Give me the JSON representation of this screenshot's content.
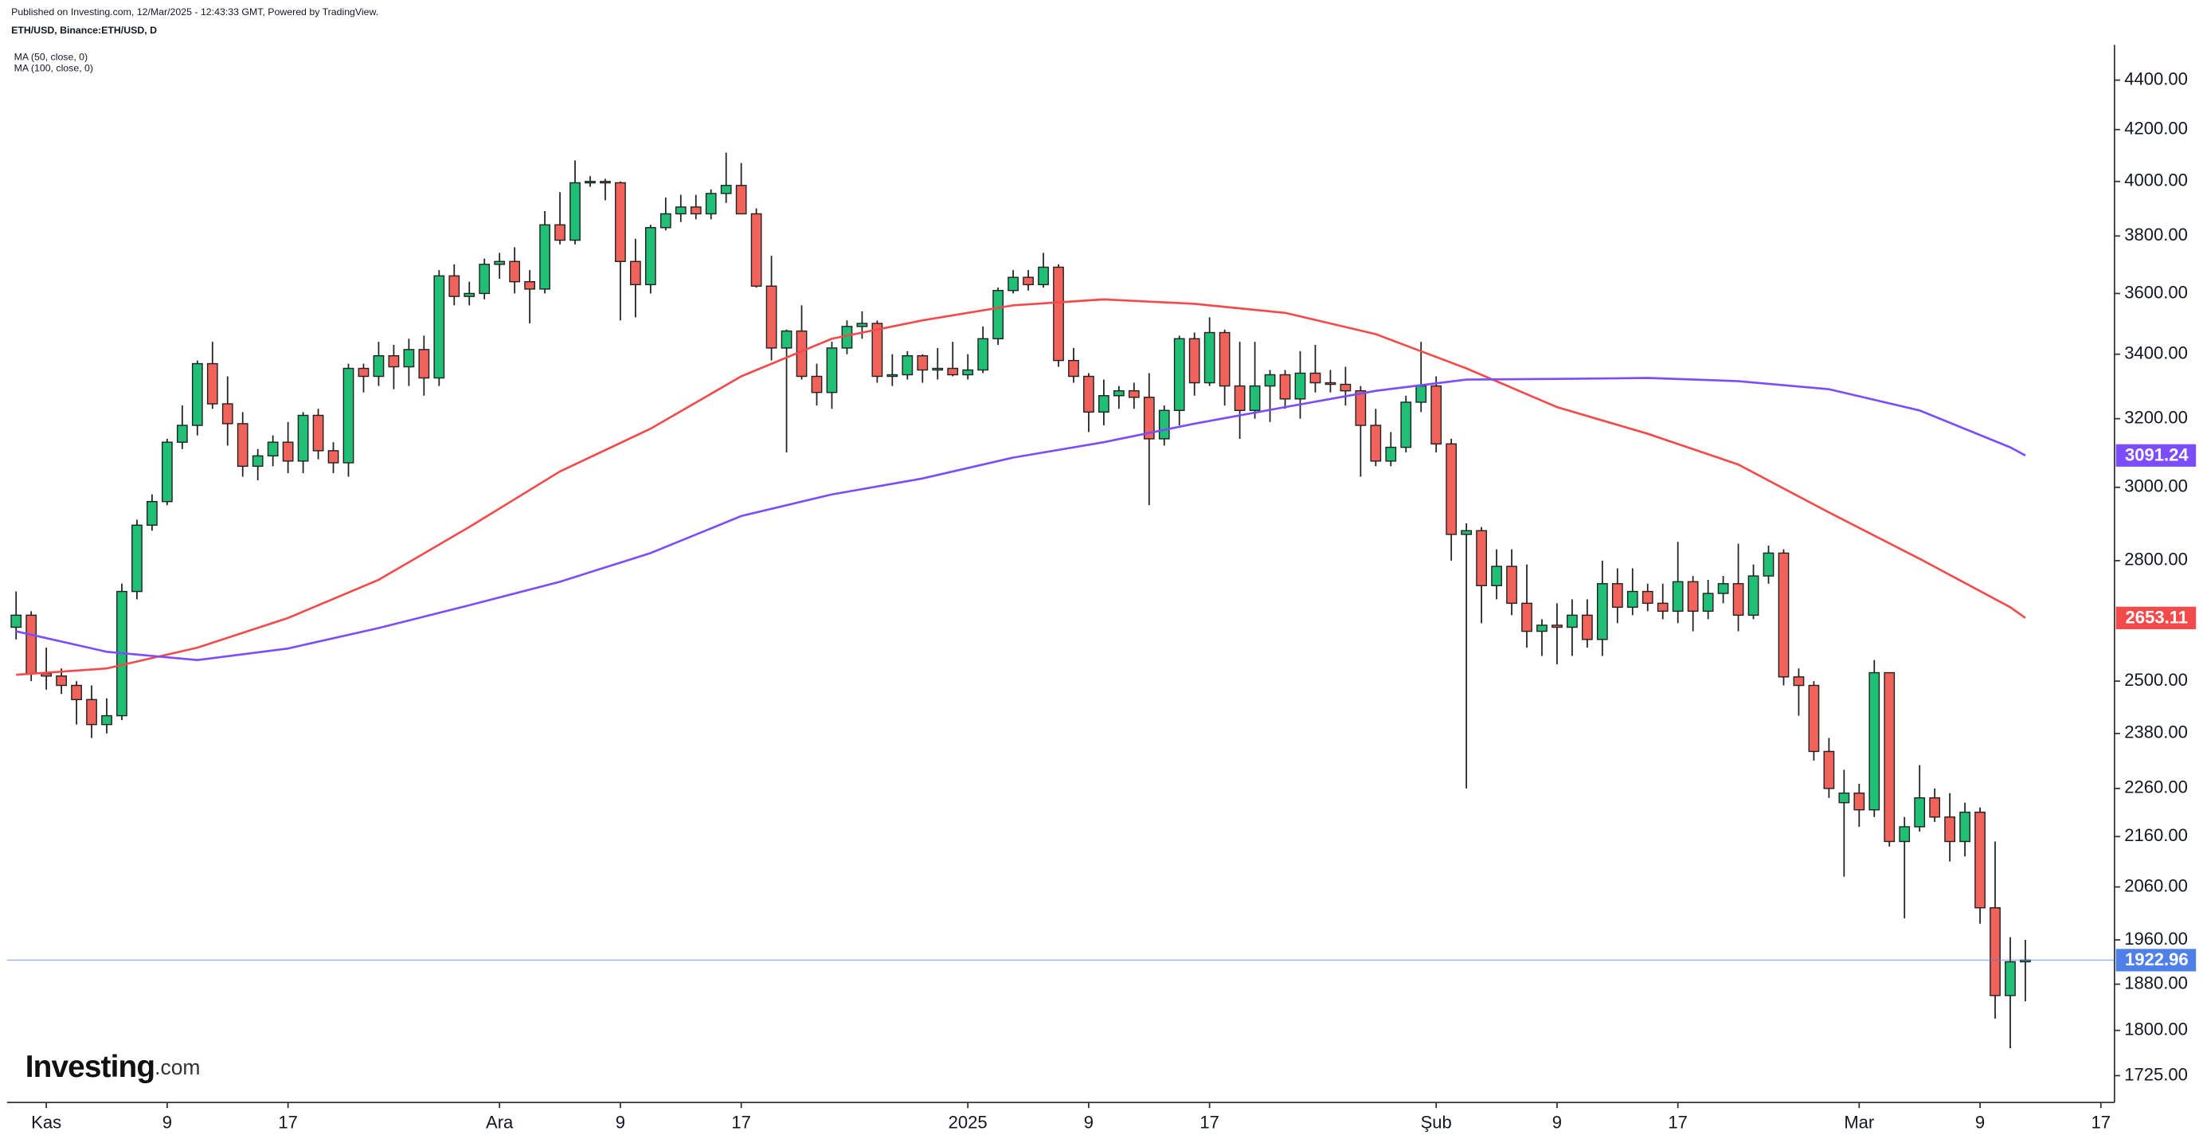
{
  "chart_data": {
    "type": "candlestick",
    "title": "Published on Investing.com, 12/Mar/2025 - 12:43:33 GMT, Powered by TradingView.",
    "subtitle": "ETH/USD, Binance:ETH/USD, D",
    "logo": "Investing",
    "logo_suffix": ".com",
    "log_scale": true,
    "up_color": "#1fbf75",
    "down_color": "#f0625a",
    "ylim": [
      1682,
      4548
    ],
    "yticks": [
      {
        "value": 4400,
        "label": "4400.00"
      },
      {
        "value": 4200,
        "label": "4200.00"
      },
      {
        "value": 4000,
        "label": "4000.00"
      },
      {
        "value": 3800,
        "label": "3800.00"
      },
      {
        "value": 3600,
        "label": "3600.00"
      },
      {
        "value": 3400,
        "label": "3400.00"
      },
      {
        "value": 3200,
        "label": "3200.00"
      },
      {
        "value": 3000,
        "label": "3000.00"
      },
      {
        "value": 2800,
        "label": "2800.00"
      },
      {
        "value": 2500,
        "label": "2500.00"
      },
      {
        "value": 2380,
        "label": "2380.00"
      },
      {
        "value": 2260,
        "label": "2260.00"
      },
      {
        "value": 2160,
        "label": "2160.00"
      },
      {
        "value": 2060,
        "label": "2060.00"
      },
      {
        "value": 1960,
        "label": "1960.00"
      },
      {
        "value": 1880,
        "label": "1880.00"
      },
      {
        "value": 1800,
        "label": "1800.00"
      },
      {
        "value": 1725,
        "label": "1725.00"
      }
    ],
    "xlim": [
      -0.6,
      138.9
    ],
    "xticks": [
      {
        "value": 2,
        "label": "Kas"
      },
      {
        "value": 10,
        "label": "9"
      },
      {
        "value": 18,
        "label": "17"
      },
      {
        "value": 32,
        "label": "Ara"
      },
      {
        "value": 40,
        "label": "9"
      },
      {
        "value": 48,
        "label": "17"
      },
      {
        "value": 63,
        "label": "2025"
      },
      {
        "value": 71,
        "label": "9"
      },
      {
        "value": 79,
        "label": "17"
      },
      {
        "value": 94,
        "label": "Şub"
      },
      {
        "value": 102,
        "label": "9"
      },
      {
        "value": 110,
        "label": "17"
      },
      {
        "value": 122,
        "label": "Mar"
      },
      {
        "value": 130,
        "label": "9"
      },
      {
        "value": 138,
        "label": "17"
      }
    ],
    "last_price_color": "#4f7fe8",
    "candles": [
      [
        2630,
        2720,
        2600,
        2660
      ],
      [
        2660,
        2670,
        2500,
        2518
      ],
      [
        2518,
        2580,
        2480,
        2512
      ],
      [
        2512,
        2530,
        2470,
        2490
      ],
      [
        2490,
        2500,
        2400,
        2457
      ],
      [
        2457,
        2490,
        2370,
        2400
      ],
      [
        2400,
        2460,
        2380,
        2420
      ],
      [
        2420,
        2740,
        2410,
        2720
      ],
      [
        2720,
        2910,
        2700,
        2895
      ],
      [
        2895,
        2980,
        2880,
        2960
      ],
      [
        2960,
        3140,
        2950,
        3130
      ],
      [
        3130,
        3240,
        3110,
        3180
      ],
      [
        3180,
        3380,
        3150,
        3370
      ],
      [
        3370,
        3440,
        3230,
        3245
      ],
      [
        3245,
        3330,
        3120,
        3185
      ],
      [
        3185,
        3220,
        3030,
        3060
      ],
      [
        3060,
        3110,
        3020,
        3090
      ],
      [
        3090,
        3150,
        3060,
        3130
      ],
      [
        3130,
        3190,
        3040,
        3075
      ],
      [
        3075,
        3220,
        3040,
        3210
      ],
      [
        3210,
        3230,
        3080,
        3105
      ],
      [
        3105,
        3130,
        3040,
        3070
      ],
      [
        3070,
        3370,
        3030,
        3355
      ],
      [
        3355,
        3370,
        3280,
        3330
      ],
      [
        3330,
        3440,
        3300,
        3395
      ],
      [
        3395,
        3430,
        3290,
        3360
      ],
      [
        3360,
        3450,
        3300,
        3415
      ],
      [
        3415,
        3460,
        3270,
        3325
      ],
      [
        3325,
        3680,
        3300,
        3660
      ],
      [
        3660,
        3700,
        3560,
        3590
      ],
      [
        3590,
        3640,
        3560,
        3600
      ],
      [
        3600,
        3720,
        3580,
        3700
      ],
      [
        3700,
        3740,
        3650,
        3710
      ],
      [
        3710,
        3760,
        3600,
        3640
      ],
      [
        3640,
        3680,
        3500,
        3615
      ],
      [
        3615,
        3890,
        3600,
        3840
      ],
      [
        3840,
        3960,
        3770,
        3785
      ],
      [
        3785,
        4080,
        3770,
        3995
      ],
      [
        3995,
        4020,
        3980,
        4000
      ],
      [
        4000,
        4010,
        3930,
        3995
      ],
      [
        3995,
        4000,
        3510,
        3710
      ],
      [
        3710,
        3790,
        3520,
        3630
      ],
      [
        3630,
        3840,
        3600,
        3830
      ],
      [
        3830,
        3940,
        3820,
        3880
      ],
      [
        3880,
        3950,
        3850,
        3905
      ],
      [
        3905,
        3950,
        3860,
        3880
      ],
      [
        3880,
        3970,
        3860,
        3955
      ],
      [
        3955,
        4110,
        3920,
        3985
      ],
      [
        3985,
        4070,
        3880,
        3880
      ],
      [
        3880,
        3900,
        3620,
        3625
      ],
      [
        3625,
        3730,
        3380,
        3420
      ],
      [
        3420,
        3480,
        3100,
        3475
      ],
      [
        3475,
        3560,
        3320,
        3330
      ],
      [
        3330,
        3370,
        3240,
        3280
      ],
      [
        3280,
        3440,
        3230,
        3420
      ],
      [
        3420,
        3510,
        3400,
        3490
      ],
      [
        3490,
        3540,
        3450,
        3500
      ],
      [
        3500,
        3510,
        3310,
        3330
      ],
      [
        3330,
        3400,
        3300,
        3335
      ],
      [
        3335,
        3410,
        3320,
        3395
      ],
      [
        3395,
        3400,
        3310,
        3350
      ],
      [
        3350,
        3420,
        3320,
        3355
      ],
      [
        3355,
        3440,
        3330,
        3335
      ],
      [
        3335,
        3400,
        3320,
        3350
      ],
      [
        3350,
        3490,
        3340,
        3450
      ],
      [
        3450,
        3620,
        3430,
        3610
      ],
      [
        3610,
        3680,
        3600,
        3655
      ],
      [
        3655,
        3680,
        3610,
        3630
      ],
      [
        3630,
        3740,
        3620,
        3690
      ],
      [
        3690,
        3700,
        3360,
        3380
      ],
      [
        3380,
        3420,
        3310,
        3330
      ],
      [
        3330,
        3340,
        3160,
        3220
      ],
      [
        3220,
        3320,
        3180,
        3270
      ],
      [
        3270,
        3300,
        3230,
        3285
      ],
      [
        3285,
        3310,
        3230,
        3265
      ],
      [
        3265,
        3340,
        2950,
        3140
      ],
      [
        3140,
        3240,
        3120,
        3225
      ],
      [
        3225,
        3460,
        3180,
        3450
      ],
      [
        3450,
        3470,
        3270,
        3310
      ],
      [
        3310,
        3520,
        3300,
        3470
      ],
      [
        3470,
        3480,
        3240,
        3300
      ],
      [
        3300,
        3440,
        3140,
        3225
      ],
      [
        3225,
        3440,
        3200,
        3300
      ],
      [
        3300,
        3350,
        3190,
        3335
      ],
      [
        3335,
        3350,
        3230,
        3260
      ],
      [
        3260,
        3410,
        3200,
        3340
      ],
      [
        3340,
        3430,
        3280,
        3310
      ],
      [
        3310,
        3350,
        3280,
        3305
      ],
      [
        3305,
        3360,
        3240,
        3285
      ],
      [
        3285,
        3300,
        3030,
        3180
      ],
      [
        3180,
        3230,
        3060,
        3075
      ],
      [
        3075,
        3160,
        3060,
        3115
      ],
      [
        3115,
        3270,
        3100,
        3250
      ],
      [
        3250,
        3440,
        3220,
        3300
      ],
      [
        3300,
        3330,
        3100,
        3125
      ],
      [
        3125,
        3140,
        2800,
        2870
      ],
      [
        2870,
        2900,
        2260,
        2880
      ],
      [
        2880,
        2890,
        2640,
        2735
      ],
      [
        2735,
        2830,
        2700,
        2785
      ],
      [
        2785,
        2830,
        2660,
        2690
      ],
      [
        2690,
        2790,
        2580,
        2620
      ],
      [
        2620,
        2650,
        2560,
        2635
      ],
      [
        2635,
        2690,
        2540,
        2630
      ],
      [
        2630,
        2700,
        2560,
        2660
      ],
      [
        2660,
        2700,
        2580,
        2600
      ],
      [
        2600,
        2800,
        2560,
        2740
      ],
      [
        2740,
        2780,
        2640,
        2680
      ],
      [
        2680,
        2780,
        2660,
        2720
      ],
      [
        2720,
        2740,
        2670,
        2690
      ],
      [
        2690,
        2740,
        2650,
        2670
      ],
      [
        2670,
        2850,
        2640,
        2745
      ],
      [
        2745,
        2760,
        2620,
        2670
      ],
      [
        2670,
        2750,
        2650,
        2715
      ],
      [
        2715,
        2760,
        2690,
        2740
      ],
      [
        2740,
        2845,
        2620,
        2660
      ],
      [
        2660,
        2790,
        2650,
        2760
      ],
      [
        2760,
        2840,
        2740,
        2820
      ],
      [
        2820,
        2830,
        2490,
        2510
      ],
      [
        2510,
        2530,
        2420,
        2490
      ],
      [
        2490,
        2500,
        2320,
        2340
      ],
      [
        2340,
        2370,
        2240,
        2260
      ],
      [
        2230,
        2300,
        2080,
        2250
      ],
      [
        2250,
        2270,
        2180,
        2215
      ],
      [
        2215,
        2550,
        2200,
        2520
      ],
      [
        2520,
        2520,
        2140,
        2150
      ],
      [
        2150,
        2200,
        2000,
        2180
      ],
      [
        2180,
        2310,
        2170,
        2240
      ],
      [
        2240,
        2260,
        2190,
        2200
      ],
      [
        2200,
        2250,
        2110,
        2150
      ],
      [
        2150,
        2230,
        2120,
        2210
      ],
      [
        2210,
        2220,
        1990,
        2020
      ],
      [
        2020,
        2150,
        1820,
        1860
      ],
      [
        1860,
        1965,
        1770,
        1920
      ],
      [
        1920,
        1960,
        1850,
        1922.96
      ]
    ],
    "series": [
      {
        "name": "MA (50, close, 0)",
        "color": "#f44a4a",
        "x": [
          0,
          6,
          12,
          18,
          24,
          30,
          36,
          42,
          48,
          54,
          60,
          66,
          72,
          78,
          84,
          90,
          96,
          102,
          108,
          114,
          120,
          126,
          132,
          133
        ],
        "values": [
          2515,
          2530,
          2580,
          2653,
          2750,
          2890,
          3045,
          3170,
          3330,
          3450,
          3510,
          3560,
          3580,
          3565,
          3535,
          3465,
          3355,
          3235,
          3155,
          3065,
          2930,
          2805,
          2680,
          2653.11
        ]
      },
      {
        "name": "MA (100, close, 0)",
        "color": "#7b4dff",
        "x": [
          0,
          6,
          12,
          18,
          24,
          30,
          36,
          42,
          48,
          54,
          60,
          66,
          72,
          78,
          84,
          90,
          96,
          102,
          108,
          114,
          120,
          126,
          132,
          133
        ],
        "values": [
          2620,
          2570,
          2550,
          2578,
          2628,
          2685,
          2745,
          2820,
          2920,
          2980,
          3025,
          3085,
          3130,
          3185,
          3235,
          3285,
          3320,
          3322,
          3325,
          3315,
          3290,
          3225,
          3115,
          3091.24
        ]
      }
    ]
  }
}
